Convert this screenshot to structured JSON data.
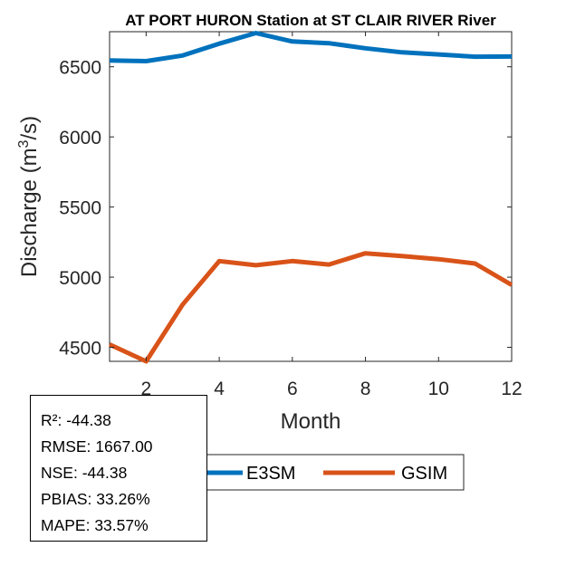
{
  "chart_data": {
    "type": "line",
    "title": "AT PORT HURON  Station at  ST CLAIR RIVER  River",
    "xlabel": "Month",
    "ylabel": "Discharge",
    "ylabel_unit_prefix": "(m",
    "ylabel_unit_exp": "3",
    "ylabel_unit_suffix": "/s)",
    "xlim": [
      1,
      12
    ],
    "ylim": [
      4400,
      6750
    ],
    "xticks": [
      2,
      4,
      6,
      8,
      10,
      12
    ],
    "yticks": [
      4500,
      5000,
      5500,
      6000,
      6500
    ],
    "x": [
      1,
      2,
      3,
      4,
      5,
      6,
      7,
      8,
      9,
      10,
      11,
      12
    ],
    "series": [
      {
        "name": "E3SM",
        "color": "#0072BD",
        "values": [
          6545,
          6540,
          6580,
          6665,
          6740,
          6680,
          6668,
          6632,
          6603,
          6588,
          6572,
          6573
        ]
      },
      {
        "name": "GSIM",
        "color": "#D95319",
        "values": [
          4520,
          4400,
          4805,
          5115,
          5085,
          5115,
          5090,
          5170,
          5150,
          5128,
          5097,
          4945
        ]
      }
    ],
    "legend": {
      "placement": "bottom-center"
    }
  },
  "stats": [
    "R²: -44.38",
    "RMSE: 1667.00",
    "NSE: -44.38",
    "PBIAS: 33.26%",
    "MAPE: 33.57%"
  ]
}
